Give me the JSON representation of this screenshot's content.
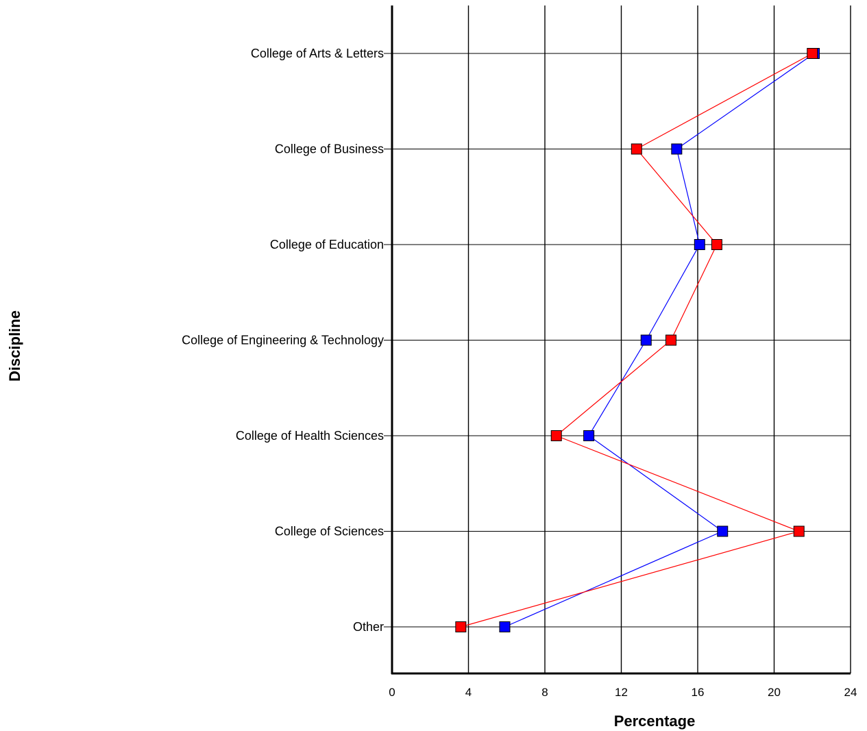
{
  "chart_data": {
    "type": "line",
    "orientation": "horizontal",
    "xlabel": "Percentage",
    "ylabel": "Discipline",
    "xlim": [
      0,
      24
    ],
    "xticks": [
      0,
      4,
      8,
      12,
      16,
      20,
      24
    ],
    "grid": true,
    "categories": [
      "College of Arts & Letters",
      "College of Business",
      "College of Education",
      "College of Engineering & Technology",
      "College of Health Sciences",
      "College of Sciences",
      "Other"
    ],
    "series": [
      {
        "color": "#0000ff",
        "values": [
          22.1,
          14.9,
          16.1,
          13.3,
          10.3,
          17.3,
          5.9
        ]
      },
      {
        "color": "#ff0000",
        "values": [
          22.0,
          12.8,
          17.0,
          14.6,
          8.6,
          21.3,
          3.6
        ]
      }
    ]
  }
}
